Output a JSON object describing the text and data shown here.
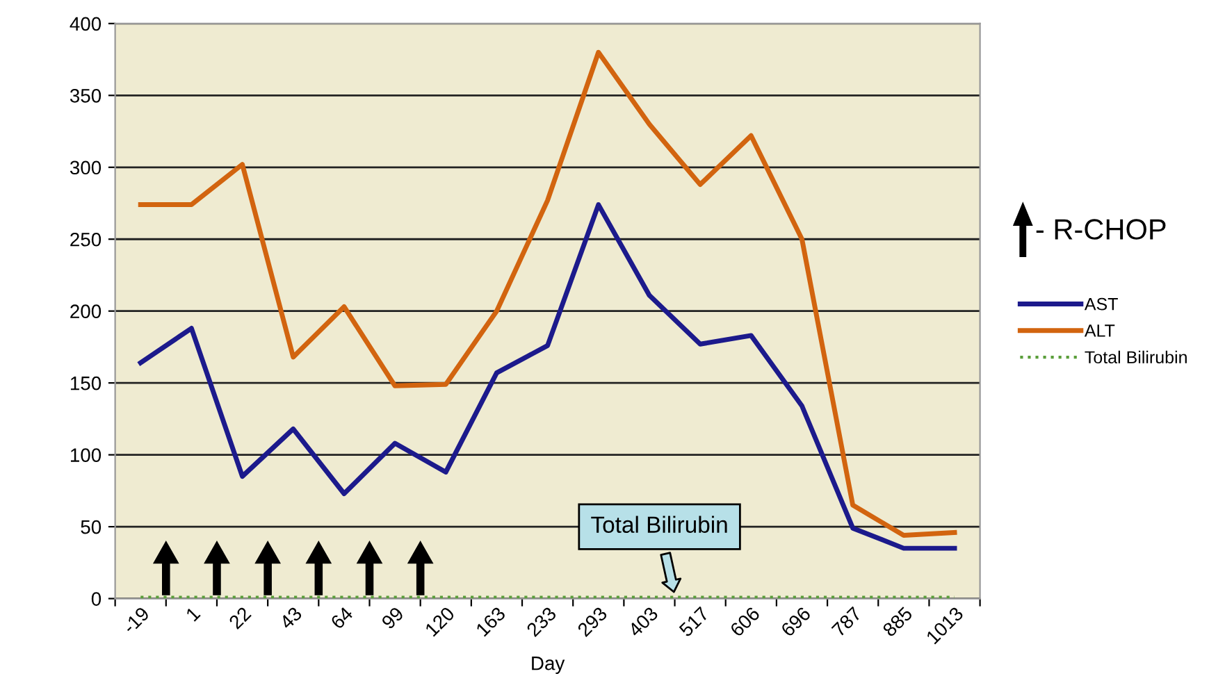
{
  "chart_data": {
    "type": "line",
    "xlabel": "Day",
    "categories": [
      "-19",
      "1",
      "22",
      "43",
      "64",
      "99",
      "120",
      "163",
      "233",
      "293",
      "403",
      "517",
      "606",
      "696",
      "787",
      "885",
      "1013"
    ],
    "series": [
      {
        "name": "AST",
        "color": "#1c1a8c",
        "values": [
          164,
          188,
          85,
          118,
          73,
          108,
          88,
          157,
          176,
          274,
          211,
          177,
          183,
          134,
          49,
          35,
          35
        ]
      },
      {
        "name": "ALT",
        "color": "#d2640f",
        "values": [
          274,
          274,
          302,
          168,
          203,
          148,
          149,
          200,
          277,
          380,
          330,
          288,
          322,
          250,
          65,
          44,
          46
        ]
      },
      {
        "name": "Total Bilirubin",
        "color": "#5a9e3a",
        "line_style": "dotted",
        "values": [
          1,
          1,
          1,
          1,
          1,
          1,
          1,
          1,
          1,
          1,
          1,
          1,
          1,
          1,
          1,
          1,
          1
        ]
      }
    ],
    "ylim": [
      0,
      400
    ],
    "yticks": [
      0,
      50,
      100,
      150,
      200,
      250,
      300,
      350,
      400
    ],
    "grid": "y",
    "legend": "right",
    "marker": "none",
    "annotations": [
      "- R-CHOP",
      "Total Bilirubin"
    ]
  }
}
